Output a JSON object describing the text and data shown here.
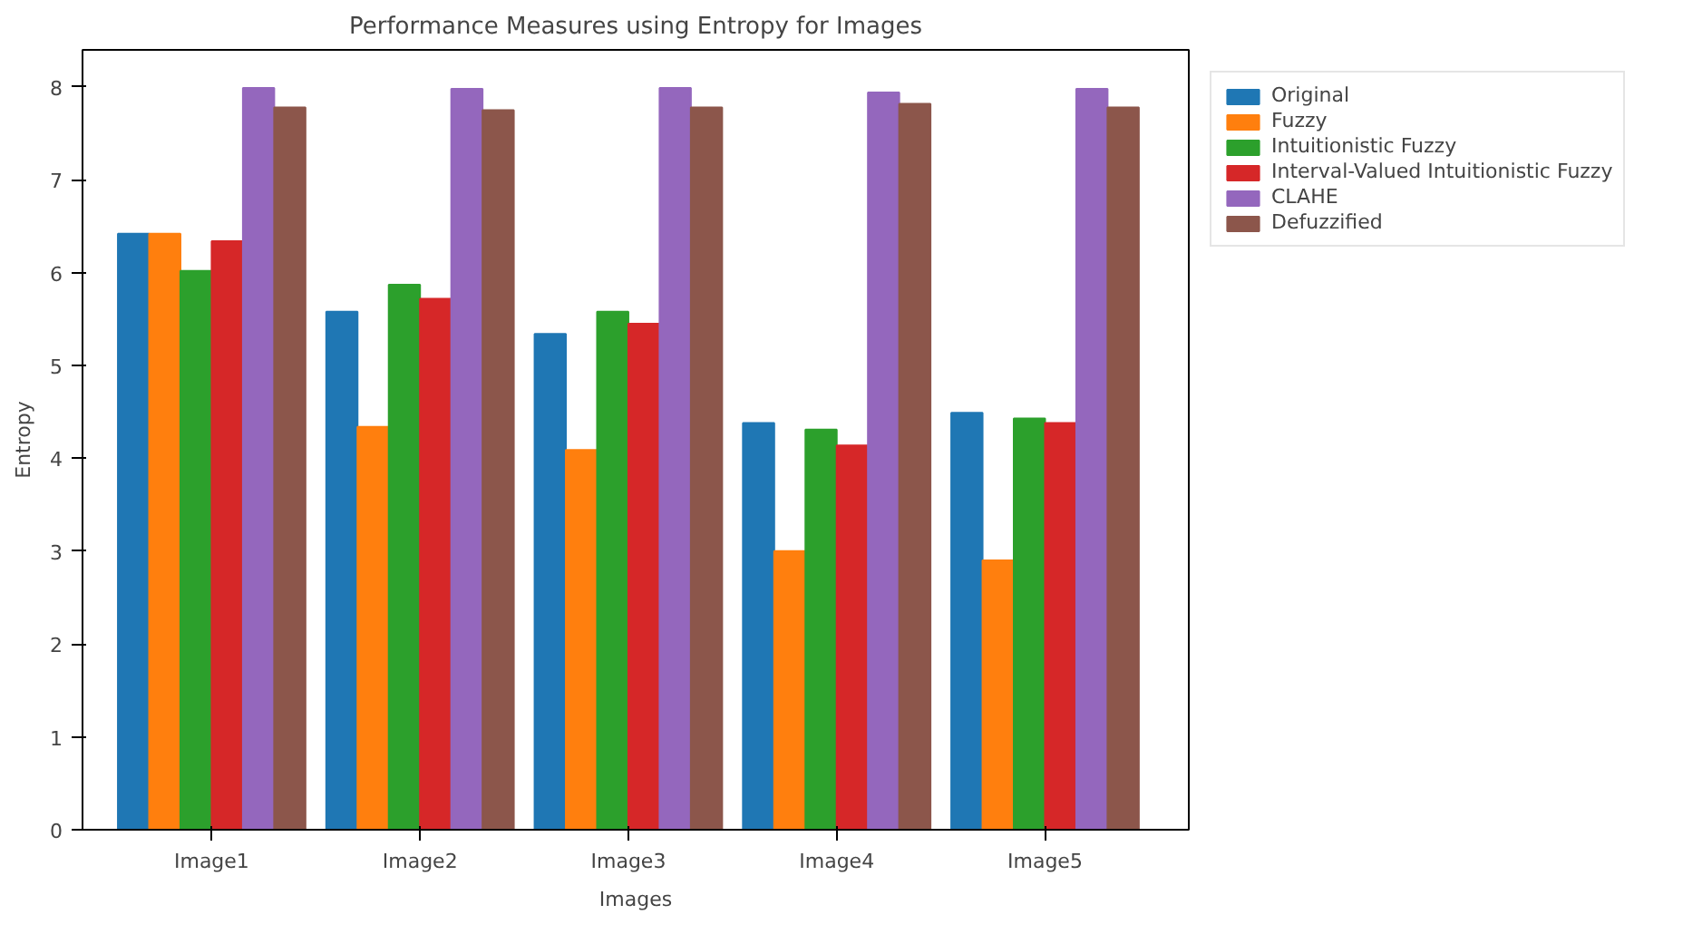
{
  "chart_data": {
    "type": "bar",
    "title": "Performance Measures using Entropy for Images",
    "xlabel": "Images",
    "ylabel": "Entropy",
    "categories": [
      "Image1",
      "Image2",
      "Image3",
      "Image4",
      "Image5"
    ],
    "series": [
      {
        "name": "Original",
        "color": "#1f77b4",
        "values": [
          6.42,
          5.58,
          5.34,
          4.38,
          4.49
        ]
      },
      {
        "name": "Fuzzy",
        "color": "#ff7f0e",
        "values": [
          6.42,
          4.34,
          4.09,
          3.0,
          2.9
        ]
      },
      {
        "name": "Intuitionistic Fuzzy",
        "color": "#2ca02c",
        "values": [
          6.02,
          5.87,
          5.58,
          4.31,
          4.43
        ]
      },
      {
        "name": "Interval-Valued Intuitionistic Fuzzy",
        "color": "#d62728",
        "values": [
          6.34,
          5.72,
          5.45,
          4.14,
          4.38
        ]
      },
      {
        "name": "CLAHE",
        "color": "#9467bd",
        "values": [
          7.99,
          7.98,
          7.99,
          7.94,
          7.98
        ]
      },
      {
        "name": "Defuzzified",
        "color": "#8c564b",
        "values": [
          7.78,
          7.75,
          7.78,
          7.82,
          7.78
        ]
      }
    ],
    "ylim": [
      0,
      8.4
    ],
    "yticks": [
      0,
      1,
      2,
      3,
      4,
      5,
      6,
      7,
      8
    ],
    "legend": "top right",
    "grid": false
  }
}
